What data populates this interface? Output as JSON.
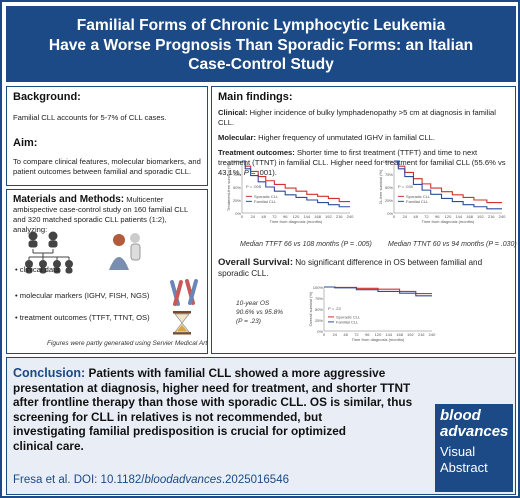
{
  "title_lines": [
    "Familial Forms of Chronic Lymphocytic Leukemia",
    "Have a Worse Prognosis Than Sporadic Forms: an Italian",
    "Case-Control Study"
  ],
  "background": {
    "heading": "Background:",
    "text": "Familial CLL accounts for 5-7% of CLL cases."
  },
  "aim": {
    "heading": "Aim:",
    "text": "To compare clinical features, molecular biomarkers, and patient outcomes between familial and sporadic CLL."
  },
  "methods": {
    "heading": "Materials and Methods:",
    "text": "Multicenter ambispective case-control study on 160 familial CLL and 320 matched sporadic CLL patients (1:2), analyzing:",
    "items": [
      "clinical data",
      "molecular markers (IGHV, FISH, NGS)",
      "treatment outcomes (TTFT, TTNT, OS)"
    ],
    "footnote": "Figures were partly generated using Servier Medical Art"
  },
  "findings": {
    "heading": "Main findings:",
    "clinical_label": "Clinical:",
    "clinical_text": "Higher incidence of bulky lymphadenopathy >5 cm at diagnosis in familial CLL.",
    "molecular_label": "Molecular:",
    "molecular_text": "Higher frequency of unmutated IGHV in familial CLL.",
    "treatment_label": "Treatment outcomes:",
    "treatment_text": "Shorter time to first treatment (TTFT) and time to next treatment (TTNT) in familial CLL. Higher need for treatment for familial CLL (55.6% vs 43,1%, ",
    "treatment_p": "P",
    "treatment_tail": " = .001).",
    "ttft_caption_a": "Median TTFT 66 vs 108 months (",
    "ttft_caption_b": " = .005)",
    "ttnt_caption_a": "Median TTNT 60 vs 94 months (",
    "ttnt_caption_b": " = .030)",
    "os_label": "Overall Survival:",
    "os_text": "No significant difference in OS between familial and sporadic CLL.",
    "os_note_1": "10-year OS",
    "os_note_2": "90.6% vs 95.8%",
    "os_note_3a": "(",
    "os_note_3b": " = .23)"
  },
  "plots": {
    "ttft": {
      "ylabel": "Treatment-free survival (%)",
      "xlabel": "Time from diagnosis (months)",
      "pval": "P = .005",
      "legend": [
        "Sporadic CLL",
        "Familial CLL"
      ]
    },
    "ttnt": {
      "ylabel": "2L-free survival (%)",
      "xlabel": "Time from diagnosis (months)",
      "pval": "P = .030",
      "legend": [
        "Sporadic CLL",
        "Familial CLL"
      ]
    },
    "os": {
      "ylabel": "Overall survival (%)",
      "xlabel": "Time from diagnosis (months)",
      "pval": "P = .23",
      "legend": [
        "Sporadic CLL",
        "Familial CLL"
      ]
    },
    "yticks": [
      "100%",
      "75%",
      "50%",
      "25%",
      "0%"
    ],
    "xticks": [
      "0",
      "24",
      "48",
      "72",
      "96",
      "120",
      "144",
      "168",
      "192",
      "216",
      "240"
    ]
  },
  "colors": {
    "sporadic": "#d0312d",
    "familial": "#2b4c9b",
    "brand": "#1b4a86"
  },
  "conclusion": {
    "label": "Conclusion:",
    "lines": [
      "Patients with familial CLL showed a more aggressive",
      "presentation at diagnosis, higher need for treatment, and shorter TTNT",
      "after frontline therapy than those with sporadic CLL. OS is similar, thus",
      "screening for CLL in relatives is not recommended, but",
      "investigating familial predisposition is crucial for optimized",
      "clinical care."
    ],
    "citation_a": "Fresa et al. DOI: 10.1182/",
    "citation_b": "bloodadvances",
    "citation_c": ".2025016546"
  },
  "logo": {
    "word1": "blood",
    "word2": "advances",
    "word3": "Visual",
    "word4": "Abstract"
  },
  "icons": [
    "family-icon",
    "patient-icon",
    "chromosome-icon",
    "hourglass-icon",
    "km-curve-icon"
  ]
}
